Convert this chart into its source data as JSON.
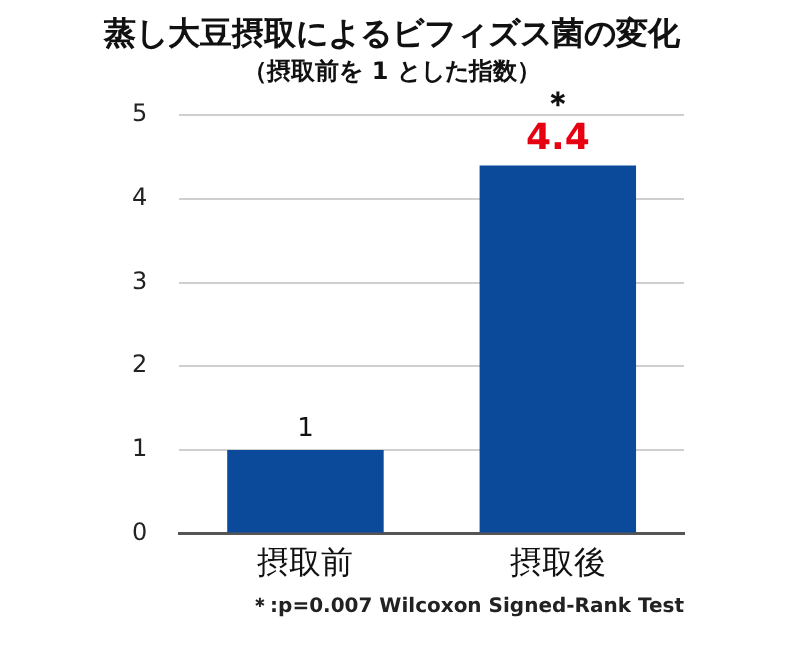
{
  "chart_data": {
    "type": "bar",
    "title": "蒸し大豆摂取によるビフィズス菌の変化",
    "subtitle": "（摂取前を 1 とした指数）",
    "categories": [
      "摂取前",
      "摂取後"
    ],
    "values": [
      1,
      4.4
    ],
    "color": "#0b4a9b",
    "ylim": [
      0,
      5
    ],
    "yticks": [
      0,
      1,
      2,
      3,
      4,
      5
    ],
    "grid": "y",
    "legend": false,
    "data_labels": true,
    "annotations": [
      "＊",
      "＊:p=0.007 Wilcoxon Signed-Rank Test"
    ]
  }
}
